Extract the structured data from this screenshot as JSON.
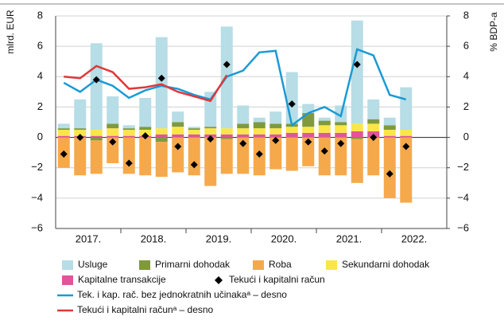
{
  "chart_data": {
    "type": "bar",
    "y_label": "mlrd. EUR",
    "y2_label": "% BDP-a",
    "categories": [
      null,
      null,
      null,
      null,
      null,
      null,
      null,
      null,
      null,
      null,
      null,
      null,
      null,
      null,
      null,
      null,
      null,
      null,
      null,
      null,
      null,
      null,
      null,
      null
    ],
    "year_labels": [
      "2017.",
      "2018.",
      "2019.",
      "2020.",
      "2021.",
      "2022."
    ],
    "ylim": [
      -6,
      8
    ],
    "yticks": [
      {
        "value": -6,
        "label": "−6"
      },
      {
        "value": -4,
        "label": "−4"
      },
      {
        "value": -2,
        "label": "−2"
      },
      0,
      2,
      4,
      6,
      8
    ],
    "y2lim": [
      -6,
      8
    ],
    "y2ticks": [
      {
        "value": -6,
        "label": "−6"
      },
      {
        "value": -4,
        "label": "−4"
      },
      {
        "value": -2,
        "label": "−2"
      },
      0,
      2,
      4,
      6,
      8
    ],
    "grid": true,
    "series": [
      {
        "name": "Usluge",
        "color": "#b7dde6",
        "values": [
          0.3,
          1.9,
          5.7,
          1.8,
          0.2,
          1.9,
          6.0,
          0.7,
          0.1,
          2.3,
          6.7,
          1.2,
          0.3,
          0.8,
          3.4,
          0.6,
          0.2,
          1.1,
          6.8,
          1.3,
          0.5,
          2.8,
          null,
          null
        ]
      },
      {
        "name": "Primarni dohodak",
        "color": "#7f9a3c",
        "values": [
          0.1,
          0.1,
          -0.2,
          0.3,
          0.1,
          0.2,
          -0.3,
          0.3,
          0.1,
          0.1,
          -0.1,
          0.3,
          0.4,
          0.3,
          0.2,
          0.9,
          0.3,
          0.2,
          -0.1,
          0.3,
          0.3,
          0.0,
          null,
          null
        ]
      },
      {
        "name": "Roba",
        "color": "#f6a94a",
        "values": [
          -2.0,
          -2.5,
          -2.2,
          -1.7,
          -2.4,
          -2.5,
          -2.3,
          -2.3,
          -2.5,
          -3.2,
          -2.3,
          -2.4,
          -2.5,
          -2.1,
          -2.2,
          -1.9,
          -2.5,
          -2.5,
          -2.9,
          -2.5,
          -4.0,
          -4.3,
          null,
          null
        ]
      },
      {
        "name": "Sekundarni dohodak",
        "color": "#fbe64a",
        "values": [
          0.4,
          0.4,
          0.4,
          0.5,
          0.4,
          0.4,
          0.4,
          0.5,
          0.3,
          0.4,
          0.4,
          0.4,
          0.4,
          0.4,
          0.4,
          0.4,
          0.5,
          0.5,
          0.5,
          0.5,
          0.4,
          0.4,
          null,
          null
        ]
      },
      {
        "name": "Kapitalne transakcije",
        "color": "#e2559a",
        "values": [
          0.1,
          0.1,
          0.1,
          0.1,
          0.1,
          0.1,
          0.2,
          0.2,
          0.2,
          0.2,
          0.2,
          0.2,
          0.2,
          0.2,
          0.3,
          0.3,
          0.3,
          0.3,
          0.4,
          0.4,
          0.1,
          0.1,
          null,
          null
        ]
      },
      {
        "name": "Tekući i kapitalni račun",
        "type": "scatter",
        "color": "#000000",
        "values": [
          -1.1,
          0.0,
          3.8,
          -0.3,
          -1.7,
          0.1,
          3.9,
          -0.6,
          -1.8,
          -0.1,
          4.8,
          -0.4,
          -1.1,
          -0.2,
          2.2,
          -0.3,
          -0.9,
          -0.4,
          4.8,
          0.0,
          -2.4,
          -0.6,
          null,
          null
        ]
      },
      {
        "name": "Tek. i kap. rač. bez jednokratnih učinakaᵃ – desno",
        "type": "line",
        "axis": "y2",
        "color": "#1a9ad6",
        "values": [
          3.6,
          3.0,
          3.8,
          3.4,
          2.6,
          3.1,
          3.4,
          3.2,
          2.8,
          2.5,
          4.0,
          4.4,
          5.6,
          5.7,
          0.8,
          1.6,
          2.0,
          1.4,
          5.8,
          5.4,
          2.8,
          2.5,
          null,
          null
        ]
      },
      {
        "name": "Tekući i kapitalni računᵃ – desno",
        "type": "line",
        "axis": "y2",
        "color": "#e0383a",
        "values": [
          4.0,
          3.9,
          4.7,
          4.3,
          3.2,
          3.3,
          3.5,
          3.0,
          2.7,
          2.4,
          4.1,
          null,
          null,
          null,
          null,
          null,
          null,
          null,
          null,
          null,
          null,
          null,
          null,
          null
        ]
      }
    ]
  }
}
